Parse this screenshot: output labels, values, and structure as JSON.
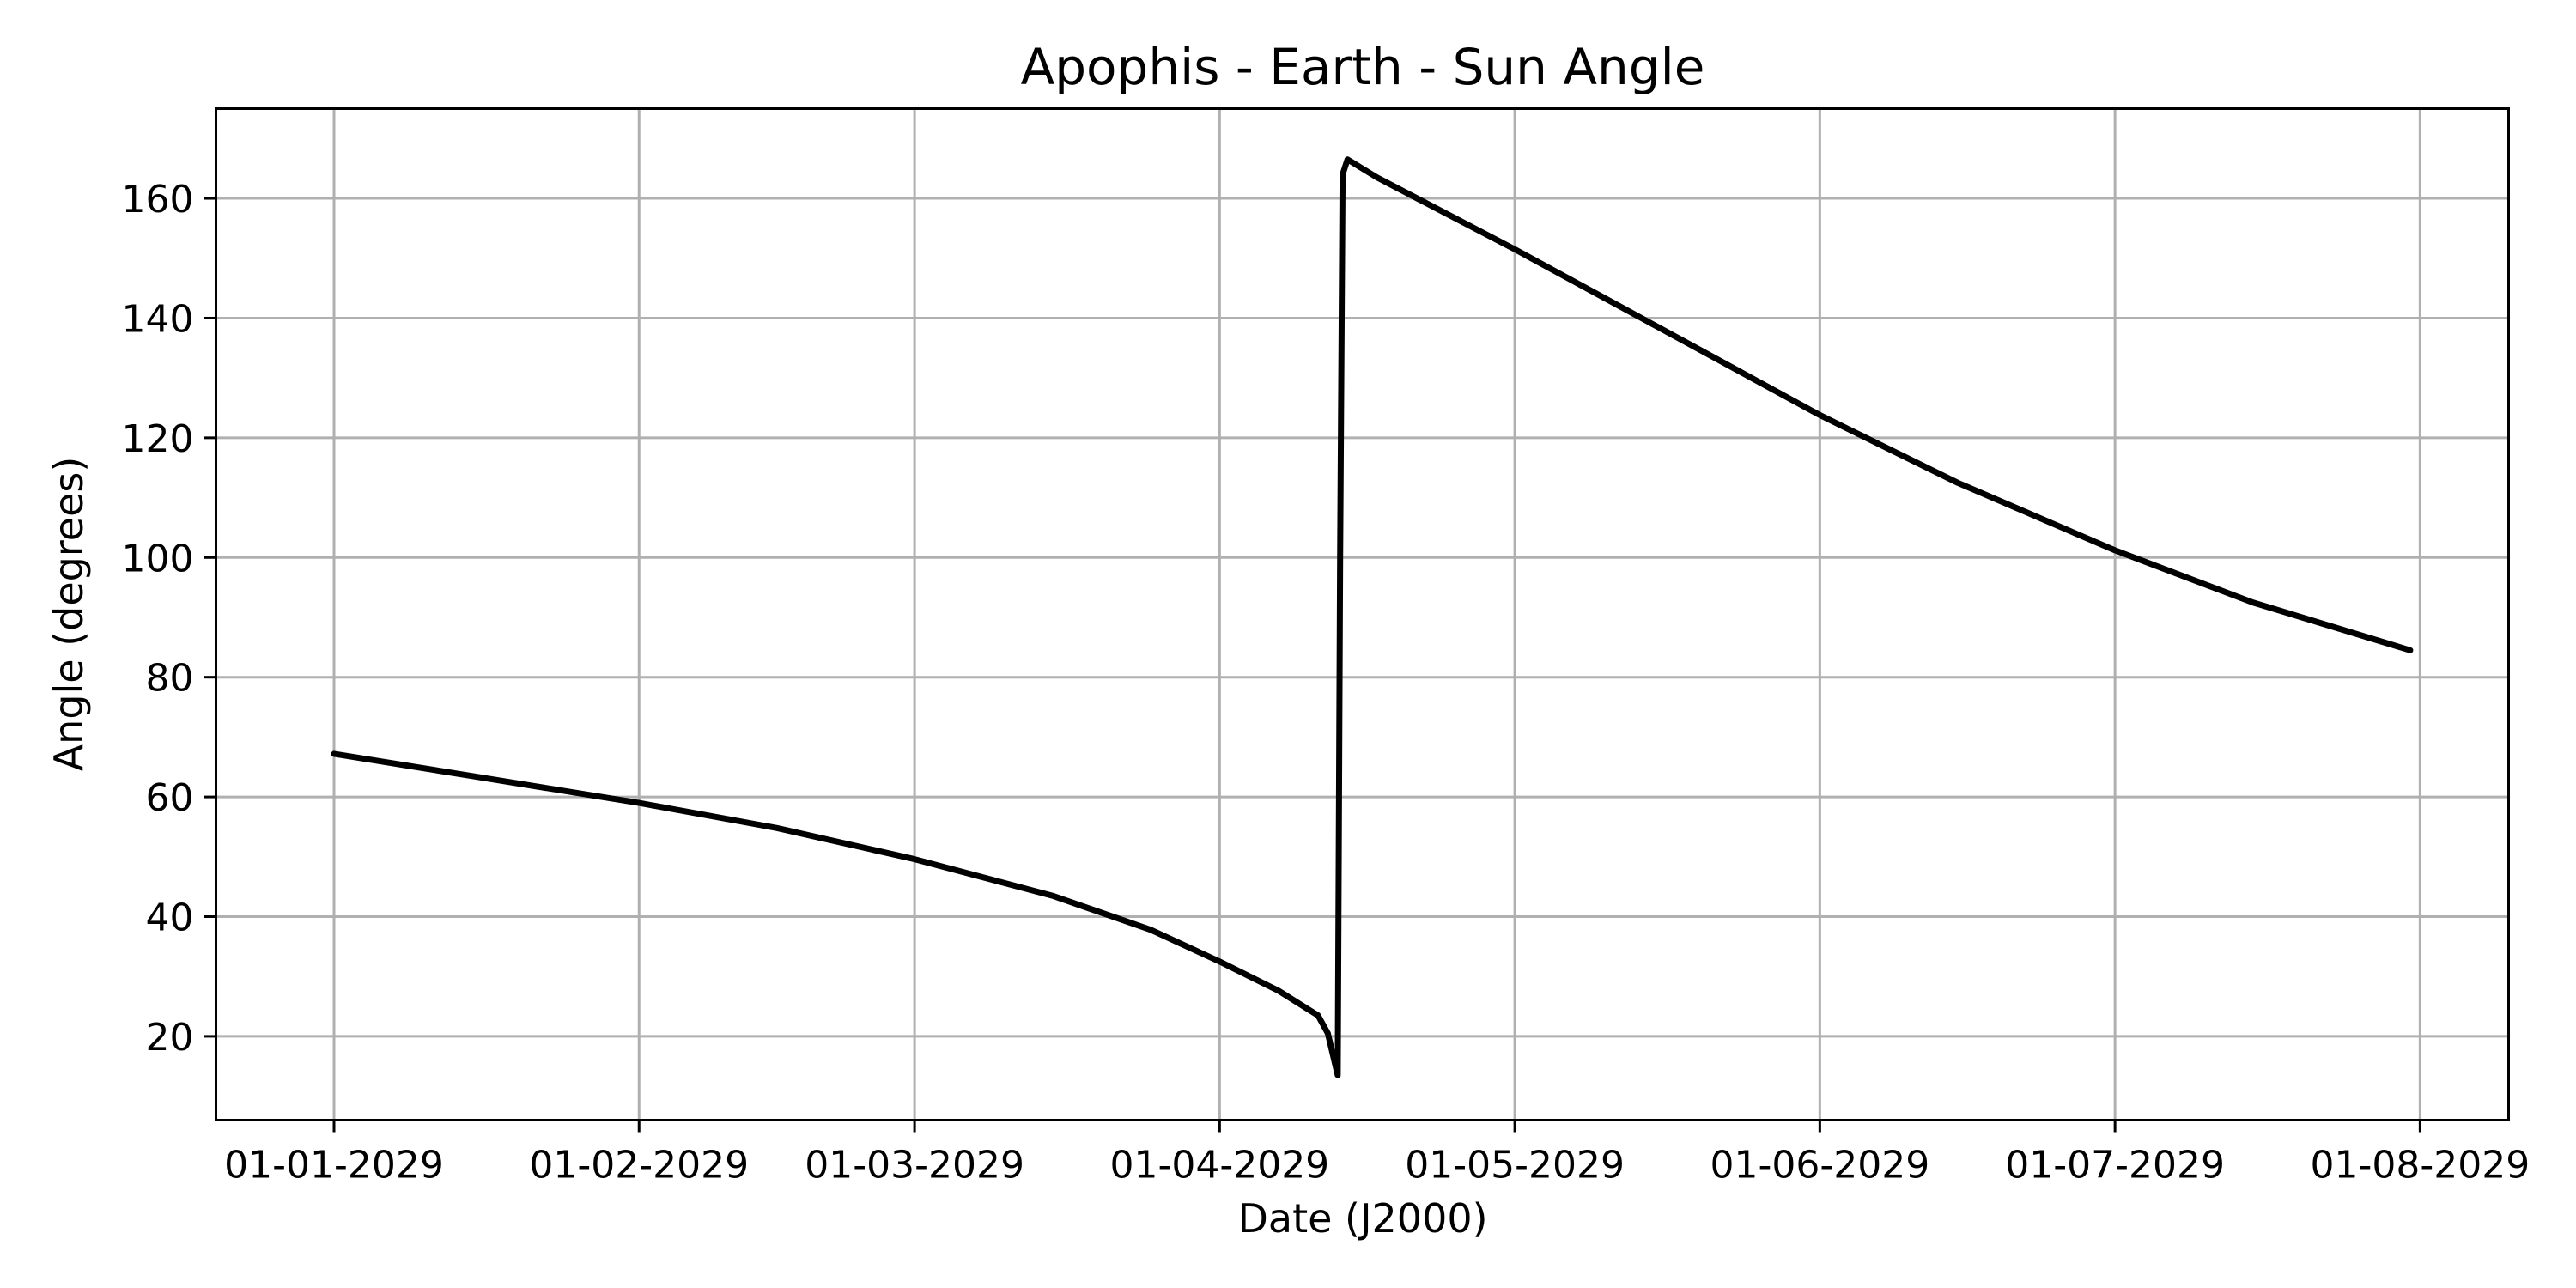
{
  "chart_data": {
    "type": "line",
    "title": "Apophis - Earth - Sun Angle",
    "xlabel": "Date (J2000)",
    "ylabel": "Angle (degrees)",
    "x_ticks": [
      {
        "date": "2029-01-01",
        "label": "01-01-2029"
      },
      {
        "date": "2029-02-01",
        "label": "01-02-2029"
      },
      {
        "date": "2029-03-01",
        "label": "01-03-2029"
      },
      {
        "date": "2029-04-01",
        "label": "01-04-2029"
      },
      {
        "date": "2029-05-01",
        "label": "01-05-2029"
      },
      {
        "date": "2029-06-01",
        "label": "01-06-2029"
      },
      {
        "date": "2029-07-01",
        "label": "01-07-2029"
      },
      {
        "date": "2029-08-01",
        "label": "01-08-2029"
      }
    ],
    "y_ticks": [
      20,
      40,
      60,
      80,
      100,
      120,
      140,
      160
    ],
    "xlim": [
      "2028-12-20",
      "2029-08-10"
    ],
    "ylim": [
      6,
      175
    ],
    "grid": true,
    "line_color": "#000000",
    "series": [
      {
        "points": [
          {
            "x": "2029-01-01",
            "y": 67.2
          },
          {
            "x": "2029-01-15",
            "y": 63.5
          },
          {
            "x": "2029-02-01",
            "y": 59.0
          },
          {
            "x": "2029-02-15",
            "y": 54.8
          },
          {
            "x": "2029-03-01",
            "y": 49.6
          },
          {
            "x": "2029-03-15",
            "y": 43.5
          },
          {
            "x": "2029-03-25",
            "y": 37.8
          },
          {
            "x": "2029-04-01",
            "y": 32.5
          },
          {
            "x": "2029-04-07",
            "y": 27.6
          },
          {
            "x": "2029-04-11",
            "y": 23.5
          },
          {
            "x": "2029-04-12",
            "y": 20.5
          },
          {
            "x": "2029-04-13",
            "y": 13.5
          },
          {
            "x": "2029-04-13T06:00",
            "y": 100.0
          },
          {
            "x": "2029-04-13T12:00",
            "y": 164.0
          },
          {
            "x": "2029-04-14",
            "y": 166.5
          },
          {
            "x": "2029-04-17",
            "y": 163.5
          },
          {
            "x": "2029-05-01",
            "y": 151.5
          },
          {
            "x": "2029-05-15",
            "y": 139.0
          },
          {
            "x": "2029-06-01",
            "y": 123.8
          },
          {
            "x": "2029-06-15",
            "y": 112.5
          },
          {
            "x": "2029-07-01",
            "y": 101.2
          },
          {
            "x": "2029-07-15",
            "y": 92.5
          },
          {
            "x": "2029-07-31",
            "y": 84.5
          }
        ]
      }
    ]
  }
}
